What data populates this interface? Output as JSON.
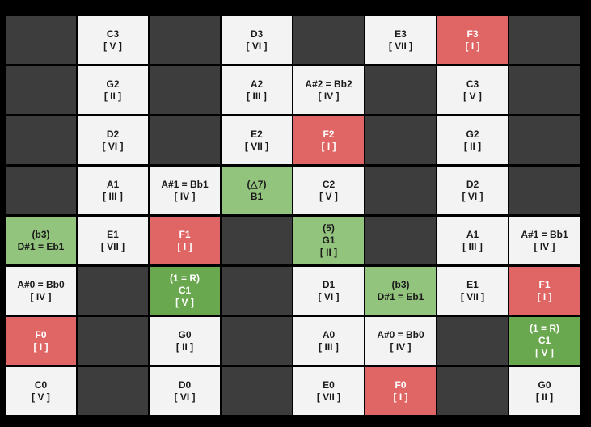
{
  "palette": {
    "dark": {
      "bg": "#3d3d3d",
      "fg": "#ffffff"
    },
    "light": {
      "bg": "#f3f3f3",
      "fg": "#1a1a1a"
    },
    "red": {
      "bg": "#e06666",
      "fg": "#ffffff"
    },
    "green": {
      "bg": "#93c47d",
      "fg": "#1a1a1a"
    },
    "darkgreen": {
      "bg": "#6aa84f",
      "fg": "#ffffff"
    }
  },
  "grid": {
    "rows": [
      [
        {
          "fill": "dark"
        },
        {
          "fill": "light",
          "lines": [
            "C3",
            "[ V ]"
          ]
        },
        {
          "fill": "dark"
        },
        {
          "fill": "light",
          "lines": [
            "D3",
            "[ VI ]"
          ]
        },
        {
          "fill": "dark"
        },
        {
          "fill": "light",
          "lines": [
            "E3",
            "[ VII ]"
          ]
        },
        {
          "fill": "red",
          "lines": [
            "F3",
            "[ I ]"
          ]
        },
        {
          "fill": "dark"
        }
      ],
      [
        {
          "fill": "dark"
        },
        {
          "fill": "light",
          "lines": [
            "G2",
            "[ II ]"
          ]
        },
        {
          "fill": "dark"
        },
        {
          "fill": "light",
          "lines": [
            "A2",
            "[ III ]"
          ]
        },
        {
          "fill": "light",
          "lines": [
            "A#2 = Bb2",
            "[ IV ]"
          ]
        },
        {
          "fill": "dark"
        },
        {
          "fill": "light",
          "lines": [
            "C3",
            "[ V ]"
          ]
        },
        {
          "fill": "dark"
        }
      ],
      [
        {
          "fill": "dark"
        },
        {
          "fill": "light",
          "lines": [
            "D2",
            "[ VI ]"
          ]
        },
        {
          "fill": "dark"
        },
        {
          "fill": "light",
          "lines": [
            "E2",
            "[ VII ]"
          ]
        },
        {
          "fill": "red",
          "lines": [
            "F2",
            "[ I ]"
          ]
        },
        {
          "fill": "dark"
        },
        {
          "fill": "light",
          "lines": [
            "G2",
            "[ II ]"
          ]
        },
        {
          "fill": "dark"
        }
      ],
      [
        {
          "fill": "dark"
        },
        {
          "fill": "light",
          "lines": [
            "A1",
            "[ III ]"
          ]
        },
        {
          "fill": "light",
          "lines": [
            "A#1 = Bb1",
            "[ IV ]"
          ]
        },
        {
          "fill": "green",
          "lines": [
            "(△7)",
            "B1"
          ]
        },
        {
          "fill": "light",
          "lines": [
            "C2",
            "[ V ]"
          ]
        },
        {
          "fill": "dark"
        },
        {
          "fill": "light",
          "lines": [
            "D2",
            "[ VI ]"
          ]
        },
        {
          "fill": "dark"
        }
      ],
      [
        {
          "fill": "green",
          "lines": [
            "(b3)",
            "D#1 = Eb1"
          ]
        },
        {
          "fill": "light",
          "lines": [
            "E1",
            "[ VII ]"
          ]
        },
        {
          "fill": "red",
          "lines": [
            "F1",
            "[ I ]"
          ]
        },
        {
          "fill": "dark"
        },
        {
          "fill": "green",
          "lines": [
            "(5)",
            "G1",
            "[ II ]"
          ]
        },
        {
          "fill": "dark"
        },
        {
          "fill": "light",
          "lines": [
            "A1",
            "[ III ]"
          ]
        },
        {
          "fill": "light",
          "lines": [
            "A#1 = Bb1",
            "[ IV ]"
          ]
        }
      ],
      [
        {
          "fill": "light",
          "lines": [
            "A#0 = Bb0",
            "[ IV ]"
          ]
        },
        {
          "fill": "dark"
        },
        {
          "fill": "darkgreen",
          "lines": [
            "(1 = R)",
            "C1",
            "[ V ]"
          ]
        },
        {
          "fill": "dark"
        },
        {
          "fill": "light",
          "lines": [
            "D1",
            "[ VI ]"
          ]
        },
        {
          "fill": "green",
          "lines": [
            "(b3)",
            "D#1 = Eb1"
          ]
        },
        {
          "fill": "light",
          "lines": [
            "E1",
            "[ VII ]"
          ]
        },
        {
          "fill": "red",
          "lines": [
            "F1",
            "[ I ]"
          ]
        }
      ],
      [
        {
          "fill": "red",
          "lines": [
            "F0",
            "[ I ]"
          ]
        },
        {
          "fill": "dark"
        },
        {
          "fill": "light",
          "lines": [
            "G0",
            "[ II ]"
          ]
        },
        {
          "fill": "dark"
        },
        {
          "fill": "light",
          "lines": [
            "A0",
            "[ III ]"
          ]
        },
        {
          "fill": "light",
          "lines": [
            "A#0 = Bb0",
            "[ IV ]"
          ]
        },
        {
          "fill": "dark"
        },
        {
          "fill": "darkgreen",
          "lines": [
            "(1 = R)",
            "C1",
            "[ V ]"
          ]
        }
      ],
      [
        {
          "fill": "light",
          "lines": [
            "C0",
            "[ V ]"
          ]
        },
        {
          "fill": "dark"
        },
        {
          "fill": "light",
          "lines": [
            "D0",
            "[ VI ]"
          ]
        },
        {
          "fill": "dark"
        },
        {
          "fill": "light",
          "lines": [
            "E0",
            "[ VII ]"
          ]
        },
        {
          "fill": "red",
          "lines": [
            "F0",
            "[ I ]"
          ]
        },
        {
          "fill": "dark"
        },
        {
          "fill": "light",
          "lines": [
            "G0",
            "[ II ]"
          ]
        }
      ]
    ]
  }
}
